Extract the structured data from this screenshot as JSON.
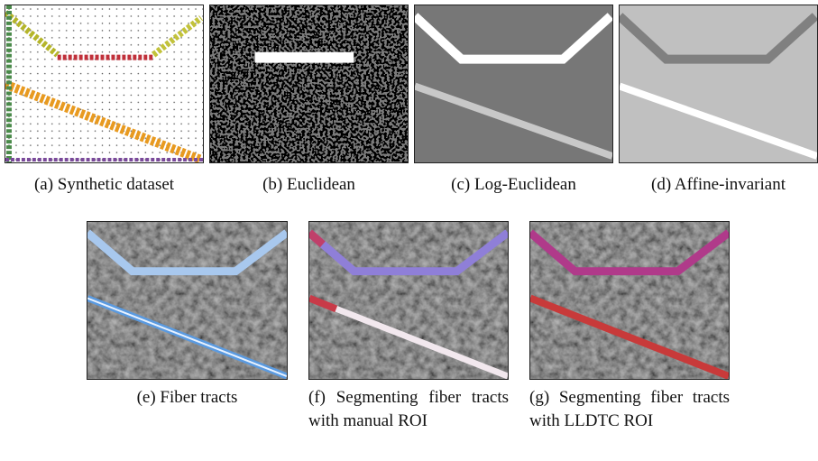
{
  "figure": {
    "panels": [
      {
        "caption": "(a) Synthetic dataset"
      },
      {
        "caption": "(b) Euclidean"
      },
      {
        "caption": "(c) Log-Euclidean"
      },
      {
        "caption": "(d) Affine-invariant"
      },
      {
        "caption": "(e) Fiber tracts"
      },
      {
        "caption": "(f) Segmenting fiber tracts with manual ROI"
      },
      {
        "caption": "(g) Segmenting fiber tracts with LLDTC ROI"
      }
    ]
  }
}
